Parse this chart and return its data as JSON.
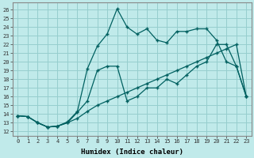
{
  "xlabel": "Humidex (Indice chaleur)",
  "bg_color": "#c0eaea",
  "grid_color": "#96cece",
  "line_color": "#006060",
  "xlim": [
    -0.5,
    23.5
  ],
  "ylim": [
    11.5,
    26.8
  ],
  "xticks": [
    0,
    1,
    2,
    3,
    4,
    5,
    6,
    7,
    8,
    9,
    10,
    11,
    12,
    13,
    14,
    15,
    16,
    17,
    18,
    19,
    20,
    21,
    22,
    23
  ],
  "yticks": [
    12,
    13,
    14,
    15,
    16,
    17,
    18,
    19,
    20,
    21,
    22,
    23,
    24,
    25,
    26
  ],
  "line1_x": [
    0,
    1,
    2,
    3,
    4,
    5,
    6,
    7,
    8,
    9,
    10,
    11,
    12,
    13,
    14,
    15,
    16,
    17,
    18,
    19,
    20,
    21,
    22,
    23
  ],
  "line1_y": [
    13.8,
    13.7,
    13.0,
    12.5,
    12.6,
    13.0,
    13.5,
    14.3,
    15.0,
    15.5,
    16.0,
    16.5,
    17.0,
    17.5,
    18.0,
    18.5,
    19.0,
    19.5,
    20.0,
    20.5,
    21.0,
    21.5,
    22.0,
    16.0
  ],
  "line2_x": [
    0,
    1,
    2,
    3,
    4,
    5,
    6,
    7,
    8,
    9,
    10,
    11,
    12,
    13,
    14,
    15,
    16,
    17,
    18,
    19,
    20,
    21,
    22,
    23
  ],
  "line2_y": [
    13.8,
    13.7,
    13.0,
    12.5,
    12.6,
    13.0,
    14.2,
    15.5,
    19.0,
    19.5,
    19.5,
    15.5,
    16.0,
    17.0,
    17.0,
    18.0,
    17.5,
    18.5,
    19.5,
    20.0,
    22.0,
    22.0,
    19.5,
    16.0
  ],
  "line3_x": [
    0,
    1,
    2,
    3,
    4,
    5,
    6,
    7,
    8,
    9,
    10,
    11,
    12,
    13,
    14,
    15,
    16,
    17,
    18,
    19,
    20,
    21,
    22,
    23
  ],
  "line3_y": [
    13.8,
    13.7,
    13.0,
    12.5,
    12.6,
    13.1,
    14.3,
    19.2,
    21.8,
    23.2,
    26.1,
    24.0,
    23.2,
    23.8,
    22.5,
    22.2,
    23.5,
    23.5,
    23.8,
    23.8,
    22.5,
    20.0,
    19.5,
    16.0
  ]
}
